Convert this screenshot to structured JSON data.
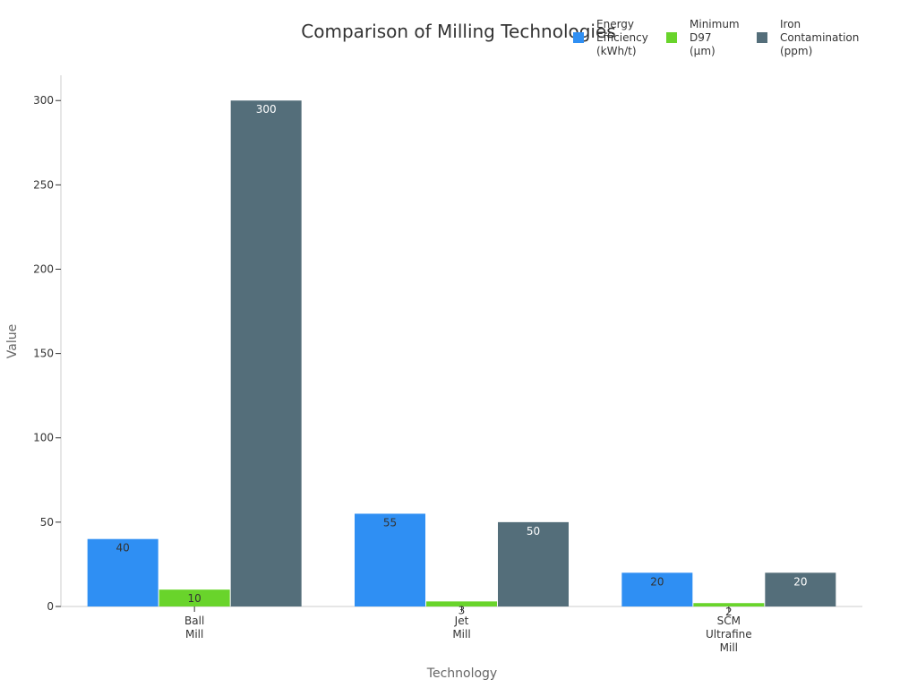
{
  "chart_data": {
    "type": "bar",
    "title": "Comparison of Milling Technologies",
    "xlabel": "Technology",
    "ylabel": "Value",
    "categories": [
      [
        "Ball",
        "Mill"
      ],
      [
        "Jet",
        "Mill"
      ],
      [
        "SCM",
        "Ultrafine",
        "Mill"
      ]
    ],
    "series": [
      {
        "name": [
          "Energy",
          "Efficiency",
          "(kWh/t)"
        ],
        "values": [
          40,
          55,
          20
        ],
        "color": "#2f8ff3",
        "label_color": "#333333"
      },
      {
        "name": [
          "Minimum",
          "D97",
          "(μm)"
        ],
        "values": [
          10,
          3,
          2
        ],
        "color": "#69d42b",
        "label_color": "#333333"
      },
      {
        "name": [
          "Iron",
          "Contamination",
          "(ppm)"
        ],
        "values": [
          300,
          50,
          20
        ],
        "color": "#546e7a",
        "label_color": "#ffffff"
      }
    ],
    "ylim": [
      0,
      315
    ],
    "yticks": [
      0,
      50,
      100,
      150,
      200,
      250,
      300
    ],
    "grid": false,
    "legend_position": "top-right"
  }
}
